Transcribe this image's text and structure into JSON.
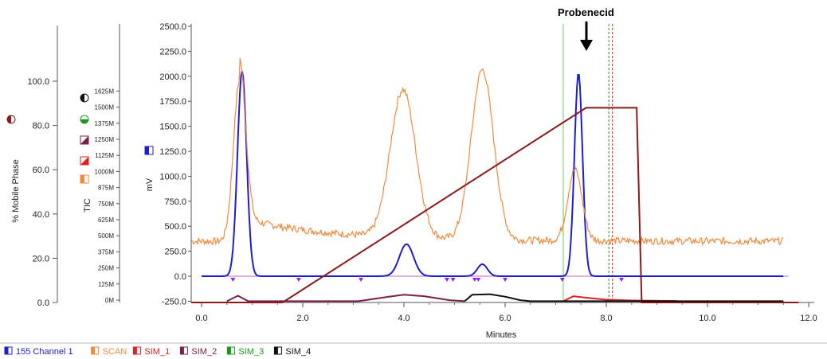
{
  "chart_data": {
    "type": "line",
    "annotation": "Probenecid",
    "xaxis": {
      "label": "Minutes",
      "ticks": [
        "0.0",
        "2.0",
        "4.0",
        "6.0",
        "8.0",
        "10.0",
        "12.0"
      ],
      "range": [
        -0.3,
        12.2
      ]
    },
    "left_axis": {
      "label": "% Mobile Phase",
      "ticks": [
        "0.0",
        "20.0",
        "40.0",
        "60.0",
        "80.0",
        "100.0"
      ],
      "range": [
        0,
        100
      ]
    },
    "tic_axis": {
      "label": "TIC",
      "ticks": [
        "0M",
        "125M",
        "250M",
        "375M",
        "500M",
        "625M",
        "750M",
        "875M",
        "1000M",
        "1125M",
        "1250M",
        "1375M",
        "1500M",
        "1625M"
      ]
    },
    "mv_axis": {
      "label": "mV",
      "ticks": [
        "-250.0",
        "0.0",
        "250.0",
        "500.0",
        "750.0",
        "1000.0",
        "1250.0",
        "1500.0",
        "1750.0",
        "2000.0",
        "2250.0",
        "2500.0"
      ],
      "range": [
        -250,
        2500
      ]
    },
    "legend": [
      {
        "name": "155 Channel 1",
        "color": "#1c1cd6"
      },
      {
        "name": "SCAN",
        "color": "#f08a3c"
      },
      {
        "name": "SIM_1",
        "color": "#e0201e"
      },
      {
        "name": "SIM_2",
        "color": "#7a1f4a"
      },
      {
        "name": "SIM_3",
        "color": "#1a9a1a"
      },
      {
        "name": "SIM_4",
        "color": "#111111"
      }
    ],
    "series": [
      {
        "name": "155 Channel 1",
        "color": "#1c1cd6",
        "unit": "mV",
        "baseline": 0,
        "x_end": 11.5,
        "peaks": [
          [
            0.8,
            2050,
            0.09
          ],
          [
            4.05,
            320,
            0.14
          ],
          [
            5.55,
            120,
            0.1
          ],
          [
            7.45,
            2030,
            0.08
          ]
        ]
      },
      {
        "name": "SCAN",
        "color": "#f08a3c",
        "unit": "mV",
        "baseline": 350,
        "x_start": -0.2,
        "x_end": 11.5,
        "broad": [
          [
            0.75,
            1600,
            0.12
          ],
          [
            3.98,
            1480,
            0.25
          ],
          [
            5.55,
            1700,
            0.22
          ],
          [
            7.38,
            710,
            0.14
          ]
        ],
        "tail": [
          [
            0.75,
            230,
            1.8
          ]
        ]
      },
      {
        "name": "% Mobile Phase",
        "color": "#8b1a1a",
        "unit": "%",
        "points": [
          [
            -0.2,
            0
          ],
          [
            1.6,
            0
          ],
          [
            7.6,
            88
          ],
          [
            8.6,
            88
          ],
          [
            8.7,
            0
          ],
          [
            11.8,
            0
          ]
        ]
      },
      {
        "name": "SIM_1",
        "color": "#e0201e",
        "unit": "mV",
        "baseline": -250,
        "points": [
          [
            7.15,
            -250
          ],
          [
            7.35,
            -200
          ],
          [
            7.6,
            -215
          ],
          [
            8.0,
            -235
          ],
          [
            8.5,
            -243
          ],
          [
            9.4,
            -248
          ]
        ]
      },
      {
        "name": "SIM_2",
        "color": "#7a1f4a",
        "unit": "mV",
        "baseline": -250,
        "points": [
          [
            0.5,
            -250
          ],
          [
            0.72,
            -195
          ],
          [
            0.92,
            -250
          ],
          [
            3.1,
            -250
          ],
          [
            3.7,
            -205
          ],
          [
            4.0,
            -185
          ],
          [
            4.4,
            -200
          ],
          [
            4.9,
            -240
          ],
          [
            5.2,
            -250
          ]
        ]
      },
      {
        "name": "SIM_4",
        "color": "#111111",
        "unit": "mV",
        "baseline": -250,
        "points": [
          [
            5.2,
            -250
          ],
          [
            5.35,
            -185
          ],
          [
            5.7,
            -180
          ],
          [
            6.0,
            -205
          ],
          [
            6.3,
            -240
          ],
          [
            6.5,
            -250
          ],
          [
            11.5,
            -250
          ]
        ]
      }
    ],
    "vertical_markers": [
      {
        "x": 7.15,
        "color": "#5fd35f"
      },
      {
        "x": 8.05,
        "color": "#1a9a1a"
      },
      {
        "x": 8.12,
        "color": "#e0201e"
      }
    ],
    "event_markers_x": [
      0.62,
      1.92,
      3.15,
      4.85,
      4.97,
      5.4,
      5.47,
      6.0,
      7.13,
      8.3
    ]
  }
}
